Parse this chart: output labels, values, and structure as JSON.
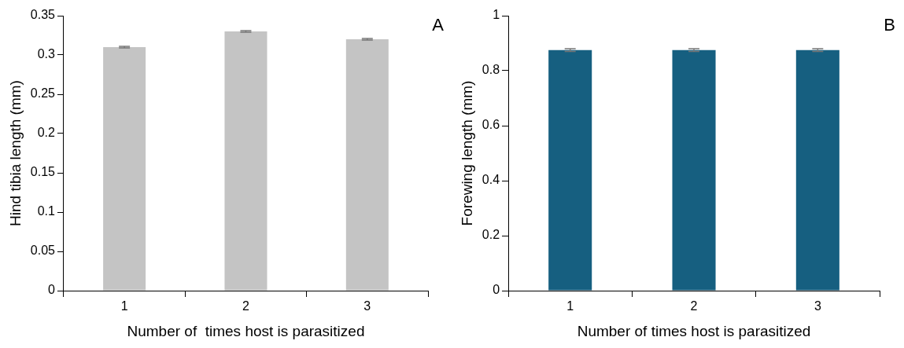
{
  "chart_data": [
    {
      "type": "bar",
      "categories": [
        "1",
        "2",
        "3"
      ],
      "xlabel": "Number of  times host is parasitized",
      "ylabel": "Hind tibia length (mm)",
      "ylim": [
        0,
        0.35
      ],
      "yticks": [
        0,
        0.05,
        0.1,
        0.15,
        0.2,
        0.25,
        0.3,
        0.35
      ],
      "grid": false,
      "legend": false,
      "annotations": [
        "A"
      ],
      "series": [
        {
          "color": "#c4c4c4",
          "values": [
            0.31,
            0.33,
            0.32
          ],
          "errors": [
            0.001,
            0.001,
            0.001
          ]
        }
      ]
    },
    {
      "type": "bar",
      "categories": [
        "1",
        "2",
        "3"
      ],
      "xlabel": "Number of times host is parasitized",
      "ylabel": "Forewing length (mm)",
      "ylim": [
        0,
        1
      ],
      "yticks": [
        0,
        0.2,
        0.4,
        0.6,
        0.8,
        1
      ],
      "grid": false,
      "legend": false,
      "annotations": [
        "B"
      ],
      "series": [
        {
          "color": "#165f80",
          "values": [
            0.875,
            0.875,
            0.875
          ],
          "errors": [
            0.005,
            0.005,
            0.005
          ]
        }
      ]
    }
  ]
}
